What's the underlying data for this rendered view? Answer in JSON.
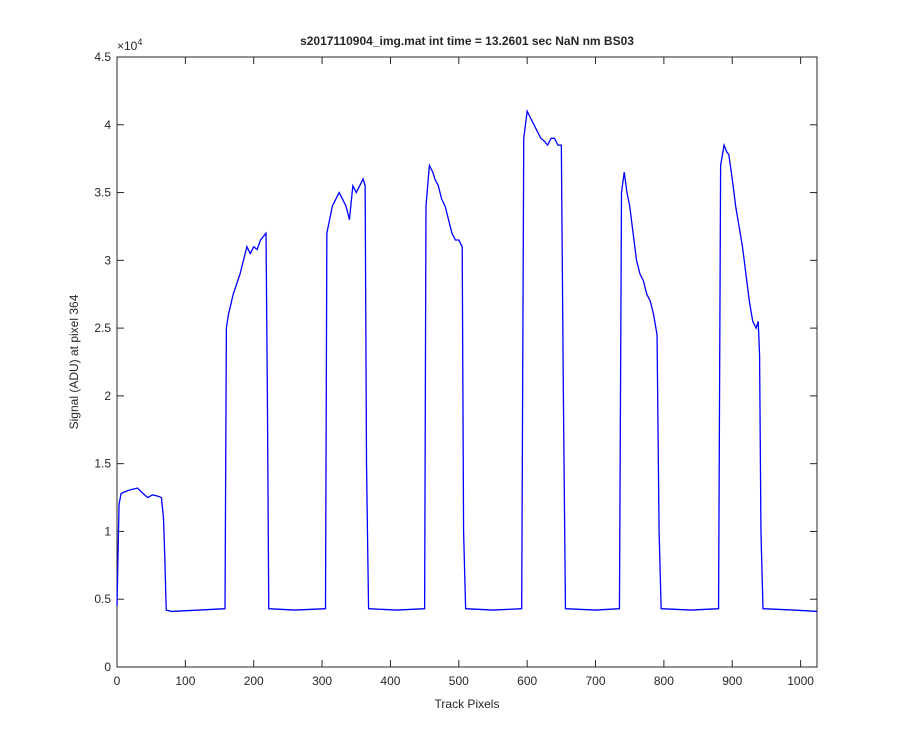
{
  "chart_data": {
    "type": "line",
    "title": "s2017110904_img.mat int time = 13.2601 sec  NaN nm BS03",
    "xlabel": "Track Pixels",
    "ylabel": "Signal (ADU) at pixel 364",
    "y_scale_label": {
      "base": "×10",
      "exponent": "4"
    },
    "xlim": [
      0,
      1024
    ],
    "ylim": [
      0,
      4.5
    ],
    "xticks": [
      0,
      100,
      200,
      300,
      400,
      500,
      600,
      700,
      800,
      900,
      1000
    ],
    "yticks": [
      0,
      0.5,
      1,
      1.5,
      2,
      2.5,
      3,
      3.5,
      4,
      4.5
    ],
    "x": [
      0,
      3,
      6,
      15,
      22,
      30,
      38,
      45,
      52,
      60,
      65,
      68,
      70,
      72,
      80,
      120,
      158,
      160,
      163,
      170,
      180,
      185,
      190,
      195,
      200,
      205,
      210,
      218,
      220,
      222,
      260,
      305,
      307,
      315,
      320,
      325,
      330,
      335,
      340,
      345,
      350,
      355,
      360,
      363,
      365,
      368,
      410,
      450,
      452,
      457,
      462,
      465,
      470,
      475,
      480,
      485,
      490,
      495,
      500,
      505,
      507,
      510,
      550,
      592,
      595,
      600,
      605,
      610,
      615,
      620,
      625,
      630,
      635,
      640,
      645,
      650,
      653,
      656,
      700,
      735,
      738,
      742,
      746,
      750,
      755,
      760,
      765,
      770,
      775,
      780,
      785,
      790,
      793,
      796,
      840,
      880,
      883,
      888,
      892,
      895,
      900,
      905,
      910,
      915,
      920,
      925,
      930,
      935,
      938,
      940,
      942,
      945,
      990,
      1024
    ],
    "series": [
      {
        "name": "signal",
        "color": "#0000ff",
        "values": [
          0.45,
          1.2,
          1.28,
          1.3,
          1.31,
          1.32,
          1.28,
          1.25,
          1.27,
          1.26,
          1.25,
          1.1,
          0.8,
          0.42,
          0.41,
          0.42,
          0.43,
          2.5,
          2.6,
          2.75,
          2.9,
          3.0,
          3.1,
          3.05,
          3.1,
          3.08,
          3.15,
          3.2,
          2.0,
          0.43,
          0.42,
          0.43,
          3.2,
          3.4,
          3.45,
          3.5,
          3.45,
          3.4,
          3.3,
          3.55,
          3.5,
          3.55,
          3.6,
          3.55,
          1.5,
          0.43,
          0.42,
          0.43,
          3.4,
          3.7,
          3.65,
          3.6,
          3.55,
          3.45,
          3.4,
          3.3,
          3.2,
          3.15,
          3.15,
          3.1,
          1.0,
          0.43,
          0.42,
          0.43,
          3.9,
          4.1,
          4.05,
          4.0,
          3.95,
          3.9,
          3.88,
          3.85,
          3.9,
          3.9,
          3.85,
          3.85,
          2.0,
          0.43,
          0.42,
          0.43,
          3.5,
          3.65,
          3.5,
          3.4,
          3.2,
          3.0,
          2.9,
          2.85,
          2.75,
          2.7,
          2.6,
          2.45,
          1.0,
          0.43,
          0.42,
          0.43,
          3.7,
          3.85,
          3.8,
          3.78,
          3.6,
          3.4,
          3.25,
          3.1,
          2.9,
          2.7,
          2.55,
          2.5,
          2.55,
          2.3,
          1.0,
          0.43,
          0.42,
          0.41
        ]
      }
    ]
  }
}
